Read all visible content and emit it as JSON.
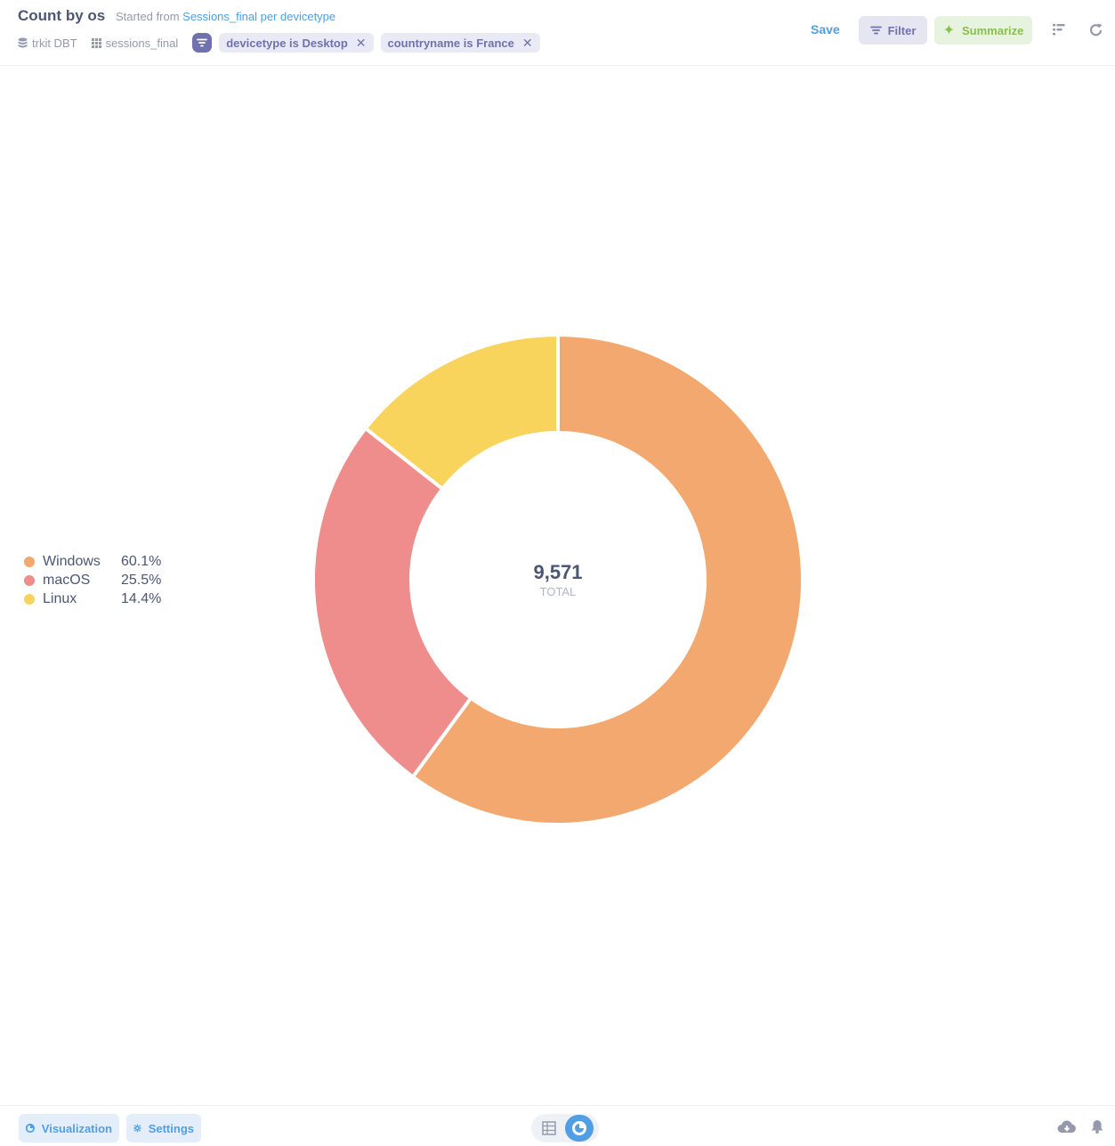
{
  "header": {
    "title": "Count by os",
    "started_prefix": "Started from",
    "started_link": "Sessions_final per devicetype",
    "database": "trkit DBT",
    "table": "sessions_final",
    "filters": [
      "devicetype is Desktop",
      "countryname is France"
    ],
    "save_label": "Save",
    "filter_label": "Filter",
    "summarize_label": "Summarize"
  },
  "chart_data": {
    "type": "pie",
    "categories": [
      "Windows",
      "macOS",
      "Linux"
    ],
    "values": [
      5752,
      2441,
      1378
    ],
    "percent_labels": [
      "60.1%",
      "25.5%",
      "14.4%"
    ],
    "colors": [
      "#F2A86F",
      "#EF8C8C",
      "#F9D45C"
    ],
    "total": "9,571",
    "total_label": "TOTAL",
    "legend_position": "left"
  },
  "footer": {
    "visualization_label": "Visualization",
    "settings_label": "Settings"
  },
  "icons": {
    "database": "database-icon",
    "table": "table-grid-icon",
    "filter": "filter-icon",
    "notebook": "notebook-icon",
    "refresh": "refresh-icon",
    "download": "download-icon",
    "bell": "bell-icon",
    "visualization": "pie-chart-icon",
    "settings": "gear-icon"
  }
}
